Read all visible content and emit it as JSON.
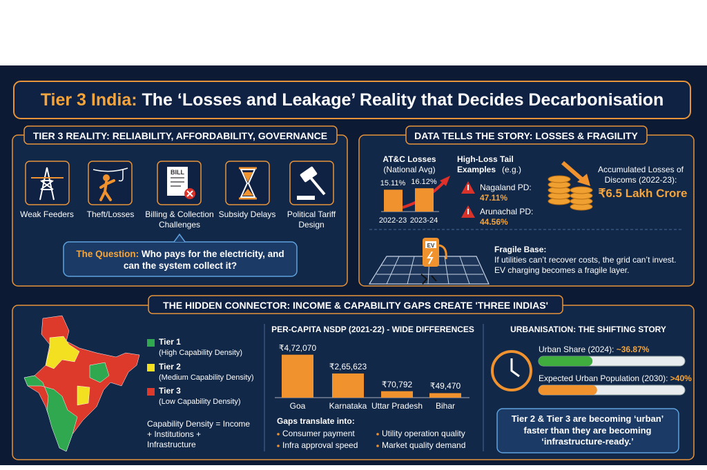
{
  "header": {
    "title_highlight": "Tier 3 India:",
    "title": "The ‘Losses and Leakage’ Reality that Decides Decarbonisation"
  },
  "reality": {
    "heading": "TIER 3 REALITY: RELIABILITY, AFFORDABILITY, GOVERNANCE",
    "bill_icon": "BILL",
    "items": [
      "Weak Feeders",
      "Theft/Losses",
      "Billing & Collection Challenges",
      "Subsidy Delays",
      "Political Tariff Design"
    ],
    "question_label": "The Question:",
    "question": "Who pays for the electricity, and can the system collect it?"
  },
  "data_story": {
    "heading": "DATA TELLS THE STORY: LOSSES & FRAGILITY",
    "atc_chart": {
      "type": "bar",
      "title": "AT&C Losses",
      "subtitle": "(National Avg)",
      "categories": [
        "2022-23",
        "2023-24"
      ],
      "values": [
        15.11,
        16.12
      ],
      "value_labels": [
        "15.11%",
        "16.12%"
      ],
      "color": "#f0922e",
      "ylim": [
        0,
        20
      ]
    },
    "tail": {
      "title": "High-Loss Tail Examples",
      "note": "(e.g.)",
      "examples": [
        {
          "name": "Nagaland PD:",
          "value": "47.11%"
        },
        {
          "name": "Arunachal PD:",
          "value": "44.56%"
        }
      ]
    },
    "accumulated": {
      "label": "Accumulated Losses of Discoms (2022-23):",
      "value": "₹6.5 Lakh Crore"
    },
    "ev_icon": "EV",
    "fragile": {
      "title": "Fragile Base:",
      "text": "If utilities can’t recover costs, the grid can’t invest. EV charging becomes a fragile layer."
    }
  },
  "connector": {
    "heading": "THE HIDDEN CONNECTOR: INCOME & CAPABILITY GAPS CREATE 'THREE INDIAS'",
    "tiers": [
      {
        "name": "Tier 1",
        "desc": "(High Capability Density)",
        "color": "#2fa84f"
      },
      {
        "name": "Tier 2",
        "desc": "(Medium Capability Density)",
        "color": "#f2e021"
      },
      {
        "name": "Tier 3",
        "desc": "(Low Capability Density)",
        "color": "#dd3a2c"
      }
    ],
    "capability": "Capability Density = Income + Institutions + Infrastructure",
    "nsdp_chart": {
      "type": "bar",
      "title": "PER-CAPITA NSDP (2021-22) - WIDE DIFFERENCES",
      "categories": [
        "Goa",
        "Karnataka",
        "Uttar Pradesh",
        "Bihar"
      ],
      "values": [
        472070,
        265623,
        70792,
        49470
      ],
      "value_labels": [
        "₹4,72,070",
        "₹2,65,623",
        "₹70,792",
        "₹49,470"
      ],
      "color": "#f0922e",
      "ylim": [
        0,
        500000
      ]
    },
    "gaps": {
      "title": "Gaps translate into:",
      "items": [
        "Consumer payment",
        "Utility operation quality",
        "Infra approval speed",
        "Market quality demand"
      ]
    },
    "urbanisation": {
      "title": "URBANISATION: THE SHIFTING STORY",
      "xlim": [
        0,
        100
      ],
      "rows": [
        {
          "label": "Urban Share (2024):",
          "value": 36.87,
          "value_label": "~36.87%",
          "color": "#3fae3f"
        },
        {
          "label": "Expected Urban Population (2030):",
          "value": 40,
          "value_label": ">40%",
          "color": "#f0922e"
        }
      ],
      "callout": "Tier 2 & Tier 3 are becoming ‘urban’ faster than they are becoming ‘infrastructure-ready.’"
    }
  }
}
